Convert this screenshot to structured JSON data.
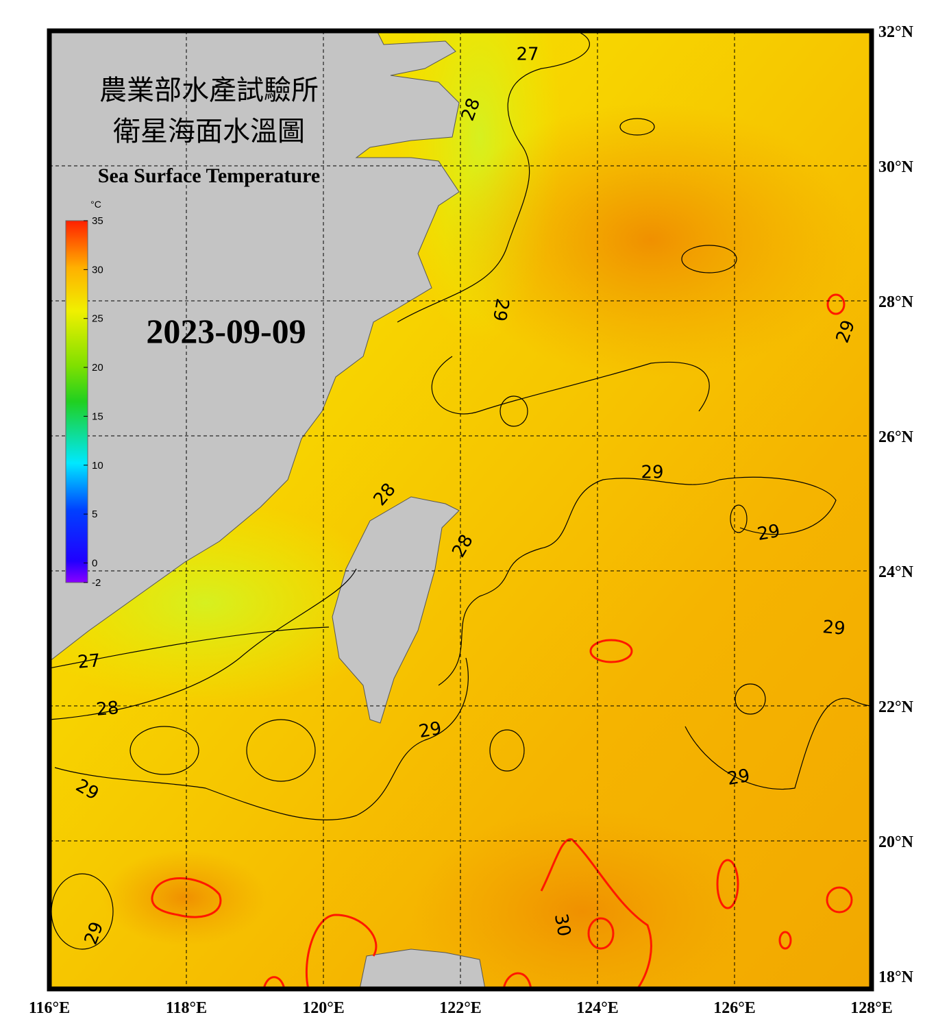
{
  "map": {
    "title_zh_1": "農業部水產試驗所",
    "title_zh_2": "衛星海面水溫圖",
    "title_en": "Sea Surface Temperature",
    "date": "2023-09-09",
    "colorbar": {
      "unit": "°C",
      "ticks": [
        35,
        30,
        25,
        20,
        15,
        10,
        5,
        0,
        -2
      ]
    },
    "lon_ticks": [
      {
        "value": 116,
        "label": "116°E"
      },
      {
        "value": 118,
        "label": "118°E"
      },
      {
        "value": 120,
        "label": "120°E"
      },
      {
        "value": 122,
        "label": "122°E"
      },
      {
        "value": 124,
        "label": "124°E"
      },
      {
        "value": 126,
        "label": "126°E"
      },
      {
        "value": 128,
        "label": "128°E"
      }
    ],
    "lat_ticks": [
      {
        "value": 32,
        "label": "32°N"
      },
      {
        "value": 30,
        "label": "30°N"
      },
      {
        "value": 28,
        "label": "28°N"
      },
      {
        "value": 26,
        "label": "26°N"
      },
      {
        "value": 24,
        "label": "24°N"
      },
      {
        "value": 22,
        "label": "22°N"
      },
      {
        "value": 20,
        "label": "20°N"
      },
      {
        "value": 18,
        "label": "18°N"
      }
    ],
    "contour_labels": [
      27,
      28,
      29,
      29,
      29,
      28,
      28,
      29,
      29,
      27,
      28,
      29,
      29,
      29,
      29,
      30
    ]
  }
}
